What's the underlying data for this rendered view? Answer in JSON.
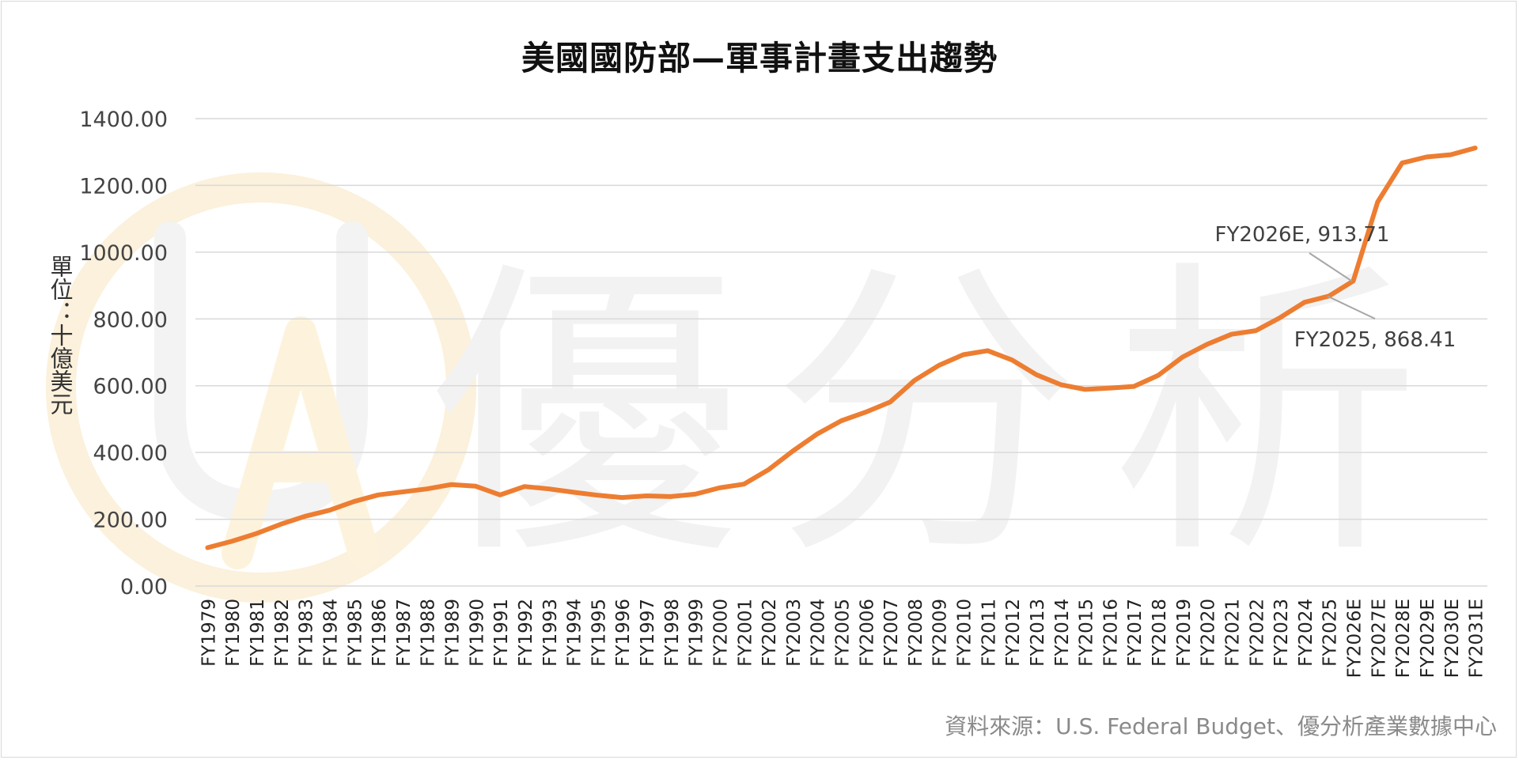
{
  "chart_data": {
    "type": "line",
    "title": "美國國防部—軍事計畫支出趨勢",
    "ylabel": "單位：十億美元",
    "xlabel": "",
    "ylim": [
      0,
      1400
    ],
    "yticks": [
      "0.00",
      "200.00",
      "400.00",
      "600.00",
      "800.00",
      "1000.00",
      "1200.00",
      "1400.00"
    ],
    "grid": true,
    "categories": [
      "FY1979",
      "FY1980",
      "FY1981",
      "FY1982",
      "FY1983",
      "FY1984",
      "FY1985",
      "FY1986",
      "FY1987",
      "FY1988",
      "FY1989",
      "FY1990",
      "FY1991",
      "FY1992",
      "FY1993",
      "FY1994",
      "FY1995",
      "FY1996",
      "FY1997",
      "FY1998",
      "FY1999",
      "FY2000",
      "FY2001",
      "FY2002",
      "FY2003",
      "FY2004",
      "FY2005",
      "FY2006",
      "FY2007",
      "FY2008",
      "FY2009",
      "FY2010",
      "FY2011",
      "FY2012",
      "FY2013",
      "FY2014",
      "FY2015",
      "FY2016",
      "FY2017",
      "FY2018",
      "FY2019",
      "FY2020",
      "FY2021",
      "FY2022",
      "FY2023",
      "FY2024",
      "FY2025",
      "FY2026E",
      "FY2027E",
      "FY2028E",
      "FY2029E",
      "FY2030E",
      "FY2031E"
    ],
    "series": [
      {
        "color": "#ED7D31",
        "values": [
          115,
          134,
          157,
          185,
          209,
          227,
          253,
          273,
          282,
          291,
          304,
          299,
          273,
          298,
          291,
          281,
          272,
          265,
          270,
          268,
          275,
          294,
          305,
          348,
          404,
          455,
          495,
          521,
          551,
          616,
          661,
          693,
          705,
          677,
          633,
          603,
          589,
          593,
          598,
          631,
          686,
          724,
          754,
          765,
          804,
          850,
          868.41,
          913.71,
          1150,
          1267,
          1285,
          1292,
          1312
        ]
      }
    ],
    "annotations": [
      {
        "label": "FY2026E, 913.71",
        "category": "FY2026E",
        "value": 913.71
      },
      {
        "label": "FY2025, 868.41",
        "category": "FY2025",
        "value": 868.41
      }
    ]
  },
  "watermark": {
    "logo_letters": "UA",
    "text": "優分析"
  },
  "footer": {
    "source": "資料來源：U.S. Federal Budget、優分析產業數據中心"
  }
}
